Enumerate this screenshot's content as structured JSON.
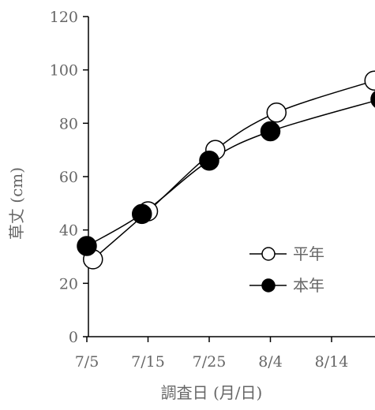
{
  "chart_data": {
    "type": "line",
    "xlabel": "調査日 (月/日)",
    "ylabel": "草丈 (cm)",
    "ylim": [
      0,
      120
    ],
    "yticks": [
      0,
      20,
      40,
      60,
      80,
      100,
      120
    ],
    "xlim": [
      0,
      49
    ],
    "xticks": [
      {
        "value": 0,
        "label": "7/5"
      },
      {
        "value": 10,
        "label": "7/15"
      },
      {
        "value": 20,
        "label": "7/25"
      },
      {
        "value": 30,
        "label": "8/4"
      },
      {
        "value": 40,
        "label": "8/14"
      }
    ],
    "grid": false,
    "legend_position": "bottom-right",
    "series": [
      {
        "name": "平年",
        "marker": "open-circle",
        "color": "#000000",
        "x": [
          1,
          10,
          21,
          31,
          47
        ],
        "y": [
          29,
          47,
          70,
          84,
          96
        ]
      },
      {
        "name": "本年",
        "marker": "filled-circle",
        "color": "#000000",
        "x": [
          0,
          9,
          20,
          30,
          48
        ],
        "y": [
          34,
          46,
          66,
          77,
          89
        ]
      }
    ]
  }
}
